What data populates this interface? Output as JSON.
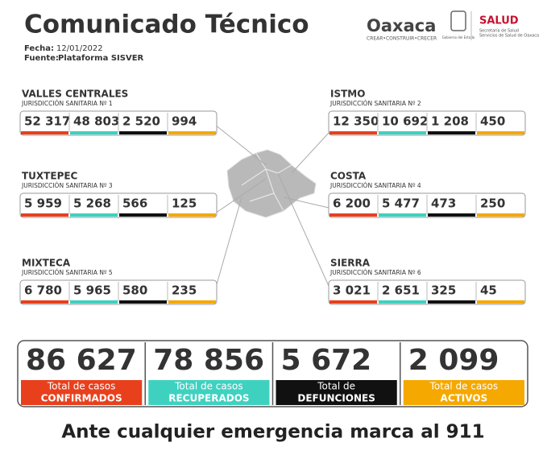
{
  "header": {
    "title": "Comunicado Técnico",
    "date_label": "Fecha:",
    "date": "12/01/2022",
    "source_label": "Fuente:",
    "source": "Plataforma SISVER"
  },
  "logos": {
    "oaxaca": "Oaxaca",
    "oaxaca_tagline": "CREAR•CONSTRUIR•CRECER",
    "gobierno": "Gobierno del Estado",
    "salud": "SALUD",
    "salud_sub1": "Secretaría de Salud",
    "salud_sub2": "Servicios de Salud de Oaxaca"
  },
  "regions": [
    {
      "name": "VALLES CENTRALES",
      "jurisdiction": "JURISDICCIÓN SANITARIA Nº 1",
      "values": [
        "52 317",
        "48 803",
        "2 520",
        "994"
      ]
    },
    {
      "name": "ISTMO",
      "jurisdiction": "JURISDICCIÓN SANITARIA Nº 2",
      "values": [
        "12 350",
        "10 692",
        "1 208",
        "450"
      ]
    },
    {
      "name": "TUXTEPEC",
      "jurisdiction": "JURISDICCIÓN SANITARIA Nº 3",
      "values": [
        "5 959",
        "5 268",
        "566",
        "125"
      ]
    },
    {
      "name": "COSTA",
      "jurisdiction": "JURISDICCIÓN SANITARIA Nº 4",
      "values": [
        "6 200",
        "5 477",
        "473",
        "250"
      ]
    },
    {
      "name": "MIXTECA",
      "jurisdiction": "JURISDICCIÓN SANITARIA Nº 5",
      "values": [
        "6 780",
        "5 965",
        "580",
        "235"
      ]
    },
    {
      "name": "SIERRA",
      "jurisdiction": "JURISDICCIÓN SANITARIA Nº 6",
      "values": [
        "3 021",
        "2 651",
        "325",
        "45"
      ]
    }
  ],
  "totals": [
    {
      "value": "86 627",
      "label_top": "Total de casos",
      "label_bottom": "CONFIRMADOS"
    },
    {
      "value": "78 856",
      "label_top": "Total de casos",
      "label_bottom": "RECUPERADOS"
    },
    {
      "value": "5 672",
      "label_top": "Total de",
      "label_bottom": "DEFUNCIONES"
    },
    {
      "value": "2 099",
      "label_top": "Total de casos",
      "label_bottom": "ACTIVOS"
    }
  ],
  "footer": "Ante cualquier emergencia marca al 911"
}
